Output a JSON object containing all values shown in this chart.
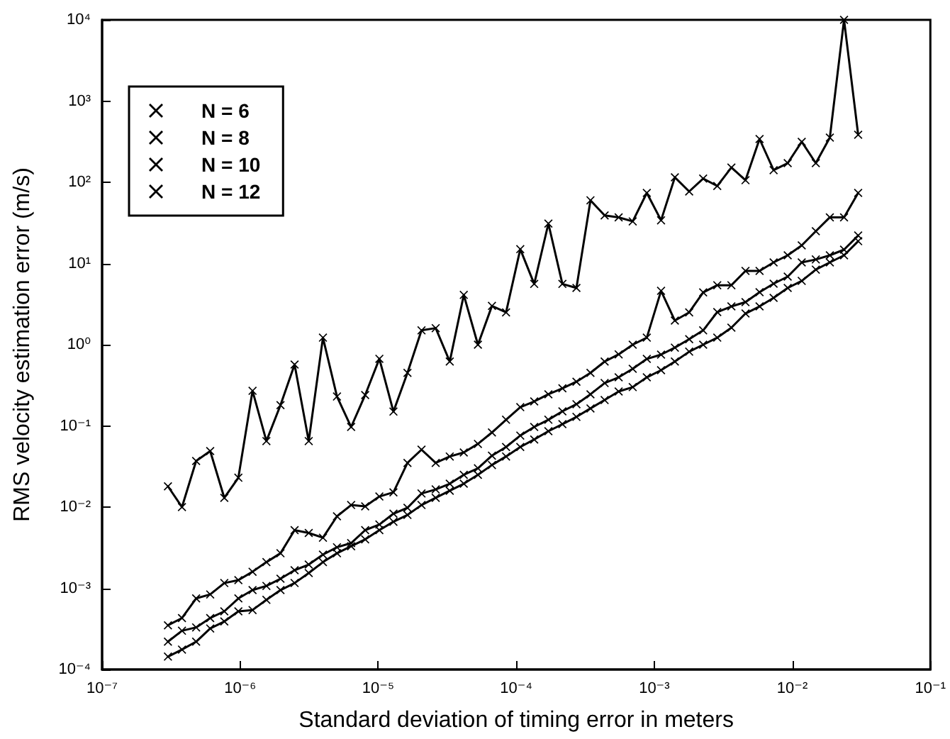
{
  "chart_data": {
    "type": "line",
    "xlabel": "Standard deviation of timing error in meters",
    "ylabel": "RMS velocity estimation error (m/s)",
    "log": "xy",
    "grid": false,
    "legend": "top left",
    "marker": "cross",
    "line_style": "solid",
    "xlim": [
      1e-07,
      0.1
    ],
    "ylim": [
      0.0001,
      10000
    ],
    "xticks": [
      {
        "value": 1e-07,
        "label": "10⁻⁷"
      },
      {
        "value": 1e-06,
        "label": "10⁻⁶"
      },
      {
        "value": 1e-05,
        "label": "10⁻⁵"
      },
      {
        "value": 0.0001,
        "label": "10⁻⁴"
      },
      {
        "value": 0.001,
        "label": "10⁻³"
      },
      {
        "value": 0.01,
        "label": "10⁻²"
      },
      {
        "value": 0.1,
        "label": "10⁻¹"
      }
    ],
    "yticks": [
      {
        "value": 0.0001,
        "label": "10⁻⁴"
      },
      {
        "value": 0.001,
        "label": "10⁻³"
      },
      {
        "value": 0.01,
        "label": "10⁻²"
      },
      {
        "value": 0.1,
        "label": "10⁻¹"
      },
      {
        "value": 1,
        "label": "10⁰"
      },
      {
        "value": 10,
        "label": "10¹"
      },
      {
        "value": 100,
        "label": "10²"
      },
      {
        "value": 1000,
        "label": "10³"
      },
      {
        "value": 10000,
        "label": "10⁴"
      }
    ],
    "x": [
      3e-07,
      3.79e-07,
      4.8e-07,
      6.07e-07,
      7.68e-07,
      9.71e-07,
      1.23e-06,
      1.55e-06,
      1.96e-06,
      2.48e-06,
      3.14e-06,
      3.98e-06,
      5.03e-06,
      6.37e-06,
      8.05e-06,
      1.02e-05,
      1.29e-05,
      1.63e-05,
      2.06e-05,
      2.61e-05,
      3.3e-05,
      4.17e-05,
      5.28e-05,
      6.67e-05,
      8.44e-05,
      0.000107,
      0.000135,
      0.000171,
      0.000216,
      0.000273,
      0.000345,
      0.000437,
      0.000552,
      0.000698,
      0.000883,
      0.00112,
      0.00141,
      0.00179,
      0.00226,
      0.00286,
      0.00362,
      0.00458,
      0.00579,
      0.00732,
      0.00926,
      0.0117,
      0.0148,
      0.0187,
      0.0237,
      0.03
    ],
    "series": [
      {
        "name": "N = 6",
        "color": "#000000",
        "values": [
          0.018,
          0.01,
          0.037,
          0.049,
          0.013,
          0.023,
          0.27,
          0.065,
          0.18,
          0.57,
          0.065,
          1.22,
          0.23,
          0.097,
          0.24,
          0.67,
          0.15,
          0.45,
          1.5,
          1.6,
          0.62,
          4.1,
          1.0,
          3.0,
          2.5,
          15,
          5.6,
          31,
          5.6,
          5.0,
          60,
          39,
          37,
          33,
          74,
          34,
          115,
          77,
          111,
          90,
          152,
          106,
          341,
          141,
          172,
          315,
          172,
          355,
          10000,
          385
        ]
      },
      {
        "name": "N = 8",
        "color": "#000000",
        "values": [
          0.00035,
          0.00043,
          0.00075,
          0.00084,
          0.00116,
          0.00126,
          0.0016,
          0.0021,
          0.0027,
          0.0052,
          0.0048,
          0.0042,
          0.0077,
          0.0106,
          0.0102,
          0.0135,
          0.0152,
          0.035,
          0.051,
          0.035,
          0.042,
          0.047,
          0.06,
          0.083,
          0.119,
          0.17,
          0.2,
          0.245,
          0.29,
          0.35,
          0.45,
          0.62,
          0.76,
          1.0,
          1.22,
          4.6,
          1.98,
          2.5,
          4.4,
          5.4,
          5.4,
          8.1,
          8.1,
          10.3,
          12.6,
          16.7,
          25,
          37,
          37,
          74
        ]
      },
      {
        "name": "N = 10",
        "color": "#000000",
        "values": [
          0.00022,
          0.0003,
          0.00033,
          0.00043,
          0.00052,
          0.00075,
          0.00095,
          0.00107,
          0.00131,
          0.00167,
          0.00196,
          0.0026,
          0.0032,
          0.0036,
          0.0052,
          0.0061,
          0.0083,
          0.0098,
          0.0147,
          0.0165,
          0.0194,
          0.025,
          0.03,
          0.043,
          0.055,
          0.076,
          0.097,
          0.119,
          0.151,
          0.185,
          0.245,
          0.337,
          0.396,
          0.505,
          0.668,
          0.755,
          0.92,
          1.17,
          1.5,
          2.52,
          2.96,
          3.34,
          4.43,
          5.64,
          6.89,
          10.3,
          11.2,
          12.6,
          14.8,
          22.1
        ]
      },
      {
        "name": "N = 12",
        "color": "#000000",
        "values": [
          0.000144,
          0.000176,
          0.00022,
          0.00032,
          0.00039,
          0.00052,
          0.00054,
          0.00072,
          0.00095,
          0.00116,
          0.00154,
          0.0021,
          0.0027,
          0.0033,
          0.004,
          0.0052,
          0.0066,
          0.008,
          0.0106,
          0.013,
          0.0159,
          0.0194,
          0.025,
          0.033,
          0.042,
          0.055,
          0.068,
          0.086,
          0.105,
          0.129,
          0.164,
          0.208,
          0.265,
          0.3,
          0.396,
          0.485,
          0.62,
          0.82,
          1.0,
          1.22,
          1.62,
          2.42,
          2.96,
          3.77,
          5.0,
          6.1,
          8.4,
          10.3,
          12.6,
          18.8
        ]
      }
    ]
  }
}
